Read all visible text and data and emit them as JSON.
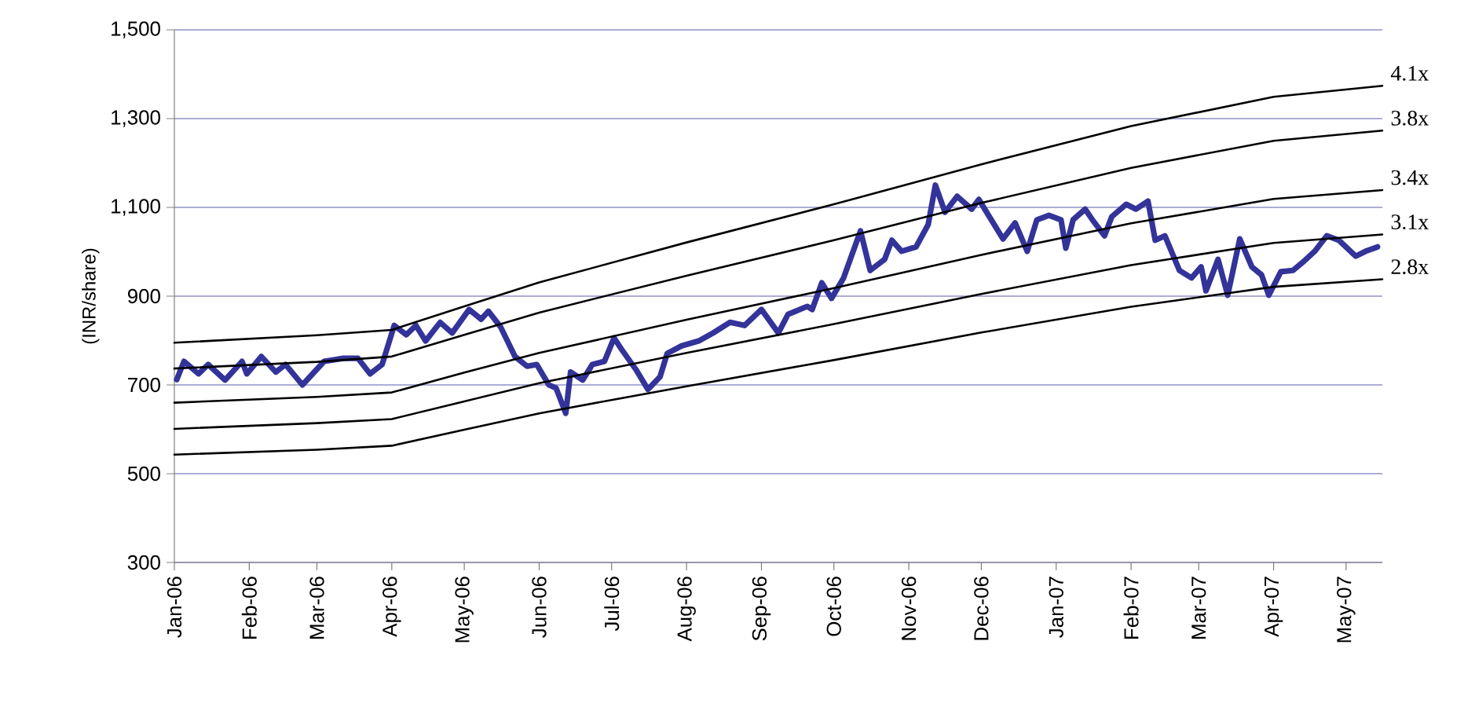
{
  "chart_data": {
    "type": "line",
    "ylabel": "(INR/share)",
    "xlim": [
      "2006-01-01",
      "2007-05-16"
    ],
    "ylim": [
      300,
      1500
    ],
    "yticks": [
      300,
      500,
      700,
      900,
      {
        "value": 1100,
        "label": "1,100"
      },
      {
        "value": 1300,
        "label": "1,300"
      },
      {
        "value": 1500,
        "label": "1,500"
      }
    ],
    "xticks": [
      {
        "value": "2006-01-01",
        "label": "Jan-06"
      },
      {
        "value": "2006-02-01",
        "label": "Feb-06"
      },
      {
        "value": "2006-03-01",
        "label": "Mar-06"
      },
      {
        "value": "2006-04-01",
        "label": "Apr-06"
      },
      {
        "value": "2006-05-01",
        "label": "May-06"
      },
      {
        "value": "2006-06-01",
        "label": "Jun-06"
      },
      {
        "value": "2006-07-01",
        "label": "Jul-06"
      },
      {
        "value": "2006-08-01",
        "label": "Aug-06"
      },
      {
        "value": "2006-09-01",
        "label": "Sep-06"
      },
      {
        "value": "2006-10-01",
        "label": "Oct-06"
      },
      {
        "value": "2006-11-01",
        "label": "Nov-06"
      },
      {
        "value": "2006-12-01",
        "label": "Dec-06"
      },
      {
        "value": "2007-01-01",
        "label": "Jan-07"
      },
      {
        "value": "2007-02-01",
        "label": "Feb-07"
      },
      {
        "value": "2007-03-01",
        "label": "Mar-07"
      },
      {
        "value": "2007-04-01",
        "label": "Apr-07"
      },
      {
        "value": "2007-05-01",
        "label": "May-07"
      }
    ],
    "grid": "y",
    "series": [
      {
        "color": "#333399",
        "x": [
          "2006-01-02",
          "2006-01-05",
          "2006-01-11",
          "2006-01-15",
          "2006-01-22",
          "2006-01-29",
          "2006-01-31",
          "2006-02-06",
          "2006-02-12",
          "2006-02-16",
          "2006-02-23",
          "2006-03-04",
          "2006-03-12",
          "2006-03-18",
          "2006-03-23",
          "2006-03-28",
          "2006-04-02",
          "2006-04-07",
          "2006-04-11",
          "2006-04-15",
          "2006-04-21",
          "2006-04-26",
          "2006-05-03",
          "2006-05-08",
          "2006-05-11",
          "2006-05-16",
          "2006-05-22",
          "2006-05-27",
          "2006-05-31",
          "2006-06-05",
          "2006-06-08",
          "2006-06-12",
          "2006-06-14",
          "2006-06-19",
          "2006-06-23",
          "2006-06-28",
          "2006-07-02",
          "2006-07-05",
          "2006-07-11",
          "2006-07-16",
          "2006-07-21",
          "2006-07-24",
          "2006-07-30",
          "2006-08-06",
          "2006-08-12",
          "2006-08-19",
          "2006-08-25",
          "2006-09-01",
          "2006-09-08",
          "2006-09-12",
          "2006-09-20",
          "2006-09-22",
          "2006-09-26",
          "2006-09-30",
          "2006-10-05",
          "2006-10-12",
          "2006-10-16",
          "2006-10-22",
          "2006-10-25",
          "2006-10-29",
          "2006-11-04",
          "2006-11-09",
          "2006-11-12",
          "2006-11-16",
          "2006-11-21",
          "2006-11-27",
          "2006-11-30",
          "2006-12-04",
          "2006-12-10",
          "2006-12-15",
          "2006-12-20",
          "2006-12-24",
          "2006-12-29",
          "2007-01-03",
          "2007-01-05",
          "2007-01-08",
          "2007-01-13",
          "2007-01-16",
          "2007-01-21",
          "2007-01-24",
          "2007-01-30",
          "2007-02-03",
          "2007-02-08",
          "2007-02-11",
          "2007-02-15",
          "2007-02-21",
          "2007-02-26",
          "2007-03-02",
          "2007-03-04",
          "2007-03-09",
          "2007-03-13",
          "2007-03-18",
          "2007-03-23",
          "2007-03-27",
          "2007-03-30",
          "2007-04-04",
          "2007-04-09",
          "2007-04-13",
          "2007-04-18",
          "2007-04-23",
          "2007-04-28",
          "2007-05-05",
          "2007-05-09",
          "2007-05-14"
        ],
        "values": [
          712,
          753,
          725,
          746,
          711,
          753,
          725,
          764,
          729,
          746,
          700,
          753,
          760,
          760,
          725,
          746,
          834,
          813,
          834,
          799,
          841,
          817,
          870,
          848,
          866,
          831,
          764,
          742,
          746,
          700,
          693,
          636,
          729,
          711,
          746,
          753,
          806,
          781,
          735,
          690,
          718,
          771,
          788,
          799,
          817,
          841,
          834,
          870,
          817,
          859,
          877,
          870,
          930,
          895,
          941,
          1047,
          958,
          983,
          1026,
          1001,
          1011,
          1061,
          1150,
          1089,
          1125,
          1096,
          1118,
          1082,
          1029,
          1065,
          1001,
          1072,
          1082,
          1072,
          1008,
          1072,
          1096,
          1072,
          1036,
          1079,
          1107,
          1096,
          1114,
          1026,
          1036,
          958,
          941,
          966,
          912,
          983,
          902,
          1029,
          966,
          948,
          902,
          955,
          958,
          976,
          1001,
          1036,
          1026,
          990,
          1001,
          1011
        ]
      },
      {
        "name": "4.1x",
        "color": "#000000",
        "x": [
          "2006-01-01",
          "2006-03-01",
          "2006-04-01",
          "2006-05-01",
          "2006-06-01",
          "2006-08-01",
          "2006-10-01",
          "2006-12-01",
          "2007-02-01",
          "2007-04-01",
          "2007-05-16"
        ],
        "values": [
          795,
          812,
          824,
          877,
          931,
          1021,
          1107,
          1197,
          1283,
          1349,
          1374
        ]
      },
      {
        "name": "3.8x",
        "color": "#000000",
        "x": [
          "2006-01-01",
          "2006-03-01",
          "2006-04-01",
          "2006-05-01",
          "2006-06-01",
          "2006-08-01",
          "2006-10-01",
          "2006-12-01",
          "2007-02-01",
          "2007-04-01",
          "2007-05-16"
        ],
        "values": [
          737,
          752,
          764,
          813,
          863,
          946,
          1026,
          1110,
          1189,
          1250,
          1273
        ]
      },
      {
        "name": "3.4x",
        "color": "#000000",
        "x": [
          "2006-01-01",
          "2006-03-01",
          "2006-04-01",
          "2006-05-01",
          "2006-06-01",
          "2006-08-01",
          "2006-10-01",
          "2006-12-01",
          "2007-02-01",
          "2007-04-01",
          "2007-05-16"
        ],
        "values": [
          660,
          673,
          683,
          728,
          772,
          847,
          918,
          993,
          1064,
          1119,
          1139
        ]
      },
      {
        "name": "3.1x",
        "color": "#000000",
        "x": [
          "2006-01-01",
          "2006-03-01",
          "2006-04-01",
          "2006-05-01",
          "2006-06-01",
          "2006-08-01",
          "2006-10-01",
          "2006-12-01",
          "2007-02-01",
          "2007-04-01",
          "2007-05-16"
        ],
        "values": [
          601,
          614,
          623,
          663,
          704,
          772,
          837,
          905,
          970,
          1020,
          1039
        ]
      },
      {
        "name": "2.8x",
        "color": "#000000",
        "x": [
          "2006-01-01",
          "2006-03-01",
          "2006-04-01",
          "2006-05-01",
          "2006-06-01",
          "2006-08-01",
          "2006-10-01",
          "2006-12-01",
          "2007-02-01",
          "2007-04-01",
          "2007-05-16"
        ],
        "values": [
          543,
          554,
          563,
          599,
          636,
          697,
          756,
          818,
          876,
          921,
          938
        ]
      }
    ]
  }
}
